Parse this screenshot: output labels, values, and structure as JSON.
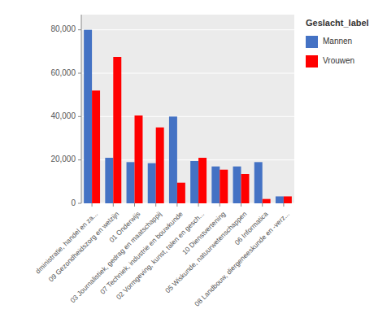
{
  "chart_data": {
    "type": "bar",
    "categories": [
      "dministratie, handel en za...",
      "09 Gezondheidszorg en welzijn",
      "01 Onderwijs",
      "03 Journalistiek, gedrag en maatschappij",
      "07 Techniek, industrie en bouwkunde",
      "02 Vormgeving, kunst, talen en gesch...",
      "10 Dienstvertening",
      "05 Wiskunde, natuurwetenschappen",
      "06 Informatica",
      "08 Landbouw, diergeneeskunde en -verz..."
    ],
    "series": [
      {
        "name": "Mannen",
        "color": "#4472C4",
        "values": [
          80000,
          21000,
          19000,
          18500,
          40000,
          19500,
          17000,
          17000,
          19000,
          3200
        ]
      },
      {
        "name": "Vrouwen",
        "color": "#FF0000",
        "values": [
          52000,
          67500,
          40500,
          35000,
          9500,
          21000,
          15500,
          13500,
          2000,
          3200
        ]
      }
    ],
    "legend_title": "Geslacht_label",
    "ylim": [
      0,
      87000
    ],
    "yticks": [
      0,
      {
        "value": 20000,
        "label": "20,000"
      },
      {
        "value": 40000,
        "label": "40,000"
      },
      {
        "value": 60000,
        "label": "60,000"
      },
      {
        "value": 80000,
        "label": "80,000"
      }
    ],
    "grid": true,
    "legend": "right"
  }
}
